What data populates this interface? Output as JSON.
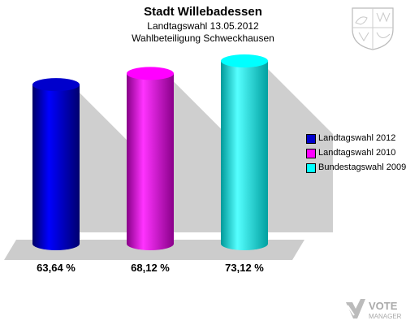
{
  "header": {
    "title": "Stadt Willebadessen",
    "subtitle": "Landtagswahl 13.05.2012",
    "subtitle2": "Wahlbeteiligung Schweckhausen"
  },
  "logo": {
    "line1": "VOTE",
    "line2": "MANAGER"
  },
  "chart_data": {
    "type": "bar",
    "categories": [
      "Landtagswahl 2012",
      "Landtagswahl 2010",
      "Bundestagswahl 2009"
    ],
    "values": [
      63.64,
      68.12,
      73.12
    ],
    "value_labels": [
      "63,64 %",
      "68,12 %",
      "73,12 %"
    ],
    "colors": [
      "#0000cc",
      "#ff00ff",
      "#00ffff"
    ],
    "legend": [
      "Landtagswahl 2012",
      "Landtagswahl 2010",
      "Bundestagswahl 2009"
    ],
    "legend_position": "right",
    "title": "Stadt Willebadessen",
    "xlabel": "",
    "ylabel": "",
    "ylim": [
      0,
      73.12
    ],
    "grid": false,
    "style": "3d-cylinder"
  }
}
